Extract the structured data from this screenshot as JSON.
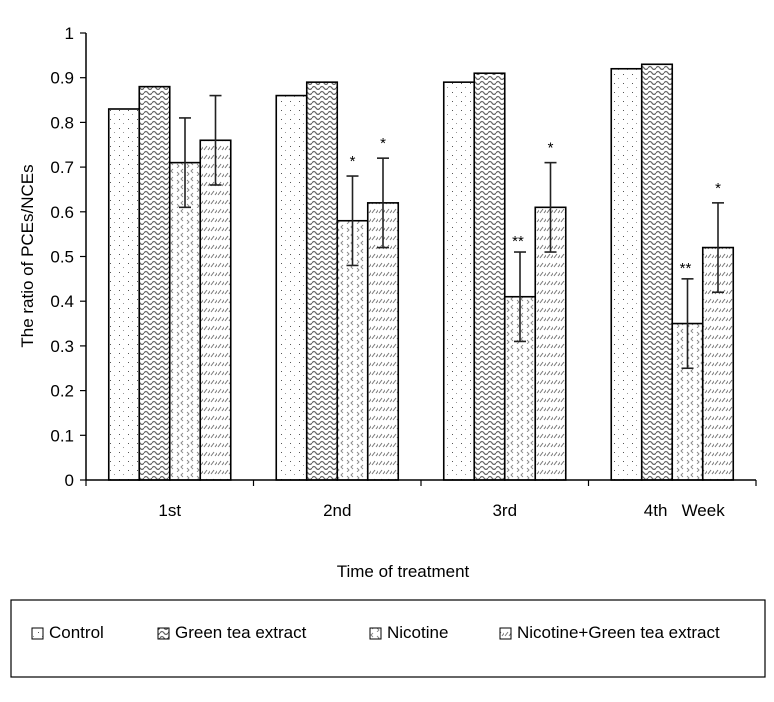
{
  "chart_data": {
    "type": "bar",
    "title": "",
    "xlabel": "Time of treatment",
    "ylabel": "The ratio of PCEs/NCEs",
    "ylim": [
      0,
      1
    ],
    "yticks": [
      "0",
      "0.1",
      "0.2",
      "0.3",
      "0.4",
      "0.5",
      "0.6",
      "0.7",
      "0.8",
      "0.9",
      "1"
    ],
    "categories": [
      "1st",
      "2nd",
      "3rd",
      "4th   Week"
    ],
    "grid": false,
    "legend_position": "bottom",
    "series": [
      {
        "name": "Control",
        "pattern": "dots",
        "values": [
          0.83,
          0.86,
          0.89,
          0.92
        ],
        "errors": [
          null,
          null,
          null,
          null
        ],
        "annotations": [
          "",
          "",
          "",
          ""
        ]
      },
      {
        "name": "Green tea extract",
        "pattern": "waves",
        "values": [
          0.88,
          0.89,
          0.91,
          0.93
        ],
        "errors": [
          null,
          null,
          null,
          null
        ],
        "annotations": [
          "",
          "",
          "",
          ""
        ]
      },
      {
        "name": "Nicotine",
        "pattern": "chevrons",
        "values": [
          0.71,
          0.58,
          0.41,
          0.35
        ],
        "errors": [
          0.1,
          0.1,
          0.1,
          0.1
        ],
        "annotations": [
          "",
          "*",
          "**",
          "**"
        ]
      },
      {
        "name": "Nicotine+Green tea extract",
        "pattern": "hatch",
        "values": [
          0.76,
          0.62,
          0.61,
          0.52
        ],
        "errors": [
          0.1,
          0.1,
          0.1,
          0.1
        ],
        "annotations": [
          "",
          "*",
          "*",
          "*"
        ]
      }
    ]
  }
}
